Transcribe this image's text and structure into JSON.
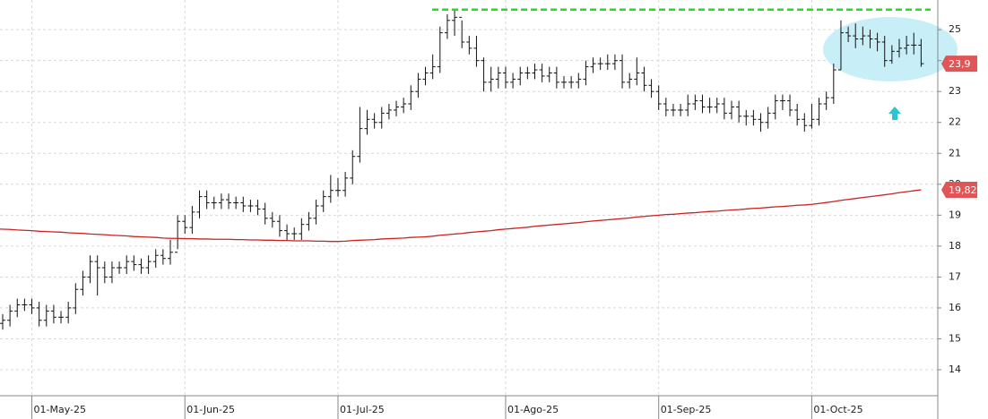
{
  "chart_data": {
    "type": "ohlc",
    "categories": [
      null,
      null,
      null,
      null,
      "01-May-25",
      null,
      null,
      null,
      null,
      null,
      null,
      null,
      null,
      null,
      null,
      null,
      null,
      null,
      null,
      null,
      null,
      null,
      null,
      null,
      null,
      "01-Jun-25",
      null,
      null,
      null,
      null,
      null,
      null,
      null,
      null,
      null,
      null,
      null,
      null,
      null,
      null,
      null,
      null,
      null,
      null,
      null,
      null,
      "01-Jul-25",
      null,
      null,
      null,
      null,
      null,
      null,
      null,
      null,
      null,
      null,
      null,
      null,
      null,
      null,
      null,
      null,
      null,
      null,
      null,
      null,
      null,
      null,
      "01-Ago-25",
      null,
      null,
      null,
      null,
      null,
      null,
      null,
      null,
      null,
      null,
      null,
      null,
      null,
      null,
      null,
      null,
      null,
      null,
      null,
      null,
      "01-Sep-25",
      null,
      null,
      null,
      null,
      null,
      null,
      null,
      null,
      null,
      null,
      null,
      null,
      null,
      null,
      null,
      null,
      null,
      null,
      null,
      null,
      "01-Oct-25",
      null,
      null,
      null,
      null,
      null,
      null,
      null,
      null,
      null,
      null,
      null,
      null,
      null,
      null,
      null
    ],
    "open": [
      15.5,
      15.6,
      15.9,
      16.1,
      16.1,
      16.0,
      15.6,
      15.9,
      15.7,
      15.7,
      16.0,
      16.6,
      17.0,
      17.5,
      17.3,
      17.0,
      17.3,
      17.3,
      17.5,
      17.4,
      17.3,
      17.5,
      17.7,
      17.6,
      17.8,
      18.8,
      18.6,
      19.1,
      19.6,
      19.4,
      19.4,
      19.5,
      19.4,
      19.4,
      19.3,
      19.3,
      19.2,
      18.9,
      18.8,
      18.5,
      18.4,
      18.4,
      18.7,
      18.9,
      19.3,
      19.6,
      19.8,
      19.8,
      20.2,
      20.9,
      21.8,
      22.1,
      22.0,
      22.3,
      22.4,
      22.5,
      22.6,
      23.0,
      23.4,
      23.6,
      23.8,
      24.9,
      25.3,
      25.4,
      24.6,
      24.4,
      24.0,
      23.3,
      23.4,
      23.6,
      23.3,
      23.4,
      23.6,
      23.6,
      23.7,
      23.5,
      23.6,
      23.3,
      23.3,
      23.3,
      23.4,
      23.8,
      23.9,
      23.9,
      23.9,
      24.0,
      23.3,
      23.4,
      23.6,
      23.2,
      23.0,
      22.6,
      22.4,
      22.4,
      22.4,
      22.6,
      22.7,
      22.5,
      22.5,
      22.6,
      22.3,
      22.5,
      22.2,
      22.2,
      22.1,
      22.0,
      22.3,
      22.7,
      22.7,
      22.4,
      22.1,
      21.9,
      22.1,
      22.6,
      22.8,
      23.7,
      24.9,
      24.8,
      24.7,
      24.8,
      24.7,
      24.6,
      24.0,
      24.3,
      24.4,
      24.5,
      24.5
    ],
    "high": [
      15.8,
      16.1,
      16.3,
      16.3,
      16.3,
      16.2,
      16.1,
      16.1,
      15.9,
      16.2,
      16.8,
      17.2,
      17.7,
      17.7,
      17.5,
      17.5,
      17.5,
      17.7,
      17.7,
      17.6,
      17.7,
      17.9,
      17.9,
      18.2,
      19.0,
      19.0,
      19.3,
      19.8,
      19.8,
      19.6,
      19.7,
      19.7,
      19.6,
      19.6,
      19.5,
      19.5,
      19.4,
      19.1,
      19.0,
      18.7,
      18.6,
      18.9,
      19.1,
      19.5,
      19.8,
      20.3,
      20.2,
      20.4,
      21.1,
      22.5,
      22.4,
      22.3,
      22.5,
      22.6,
      22.7,
      22.8,
      23.2,
      23.6,
      23.8,
      24.2,
      25.1,
      25.5,
      25.65,
      25.3,
      24.8,
      24.8,
      24.1,
      23.8,
      23.8,
      23.8,
      23.6,
      23.8,
      23.8,
      23.9,
      23.9,
      23.8,
      23.8,
      23.5,
      23.5,
      23.6,
      24.0,
      24.1,
      24.1,
      24.2,
      24.2,
      24.2,
      23.6,
      24.1,
      23.8,
      23.4,
      23.2,
      22.8,
      22.6,
      22.6,
      22.9,
      22.9,
      22.9,
      22.8,
      22.8,
      22.8,
      22.7,
      22.7,
      22.4,
      22.4,
      22.3,
      22.5,
      22.9,
      22.9,
      22.9,
      22.6,
      22.3,
      22.6,
      22.8,
      23.0,
      23.9,
      25.3,
      25.1,
      25.2,
      25.1,
      25.0,
      24.9,
      24.8,
      24.5,
      24.7,
      24.8,
      24.9,
      24.7
    ],
    "low": [
      15.3,
      15.4,
      15.7,
      15.9,
      15.8,
      15.4,
      15.4,
      15.5,
      15.5,
      15.5,
      15.8,
      16.4,
      16.8,
      16.4,
      16.8,
      16.8,
      17.1,
      17.1,
      17.2,
      17.1,
      17.1,
      17.3,
      17.4,
      17.4,
      17.9,
      18.4,
      18.4,
      18.9,
      19.2,
      19.2,
      19.2,
      19.2,
      19.2,
      19.1,
      19.1,
      19.0,
      18.7,
      18.6,
      18.3,
      18.2,
      18.2,
      18.2,
      18.5,
      18.7,
      19.1,
      19.4,
      19.6,
      19.6,
      20.0,
      20.7,
      21.6,
      21.8,
      21.8,
      22.1,
      22.2,
      22.3,
      22.4,
      22.8,
      23.2,
      23.4,
      23.6,
      24.7,
      24.8,
      24.4,
      24.2,
      23.8,
      23.0,
      23.0,
      23.1,
      23.1,
      23.1,
      23.2,
      23.4,
      23.4,
      23.3,
      23.3,
      23.1,
      23.1,
      23.1,
      23.1,
      23.2,
      23.6,
      23.7,
      23.7,
      23.7,
      23.1,
      23.1,
      23.2,
      23.0,
      22.8,
      22.4,
      22.2,
      22.2,
      22.2,
      22.2,
      22.4,
      22.3,
      22.3,
      22.3,
      22.1,
      22.1,
      22.0,
      21.9,
      21.9,
      21.7,
      21.8,
      22.1,
      22.4,
      22.2,
      21.9,
      21.7,
      21.8,
      21.9,
      22.4,
      22.6,
      23.7,
      24.6,
      24.4,
      24.5,
      24.4,
      24.3,
      23.8,
      23.9,
      24.1,
      24.2,
      24.2,
      23.8
    ],
    "close": [
      15.6,
      15.9,
      16.1,
      16.1,
      16.0,
      15.6,
      15.9,
      15.7,
      15.7,
      16.0,
      16.6,
      17.0,
      17.5,
      17.3,
      17.0,
      17.3,
      17.3,
      17.5,
      17.4,
      17.3,
      17.5,
      17.7,
      17.6,
      17.8,
      18.8,
      18.6,
      19.1,
      19.6,
      19.4,
      19.4,
      19.5,
      19.4,
      19.4,
      19.3,
      19.3,
      19.2,
      18.9,
      18.8,
      18.5,
      18.4,
      18.4,
      18.7,
      18.9,
      19.3,
      19.6,
      19.8,
      19.8,
      20.2,
      20.9,
      21.8,
      22.1,
      22.0,
      22.3,
      22.4,
      22.5,
      22.6,
      23.0,
      23.4,
      23.6,
      23.8,
      24.9,
      25.3,
      25.4,
      24.6,
      24.4,
      24.0,
      23.3,
      23.4,
      23.6,
      23.3,
      23.4,
      23.6,
      23.6,
      23.7,
      23.5,
      23.6,
      23.3,
      23.3,
      23.3,
      23.4,
      23.8,
      23.9,
      23.9,
      23.9,
      24.0,
      23.3,
      23.4,
      23.6,
      23.2,
      23.0,
      22.6,
      22.4,
      22.4,
      22.4,
      22.6,
      22.7,
      22.5,
      22.5,
      22.6,
      22.3,
      22.5,
      22.2,
      22.2,
      22.1,
      22.0,
      22.3,
      22.7,
      22.7,
      22.4,
      22.1,
      21.9,
      22.1,
      22.6,
      22.8,
      23.7,
      24.9,
      24.8,
      24.7,
      24.8,
      24.7,
      24.6,
      24.0,
      24.3,
      24.4,
      24.5,
      24.5,
      23.9
    ],
    "color": "#111111",
    "moving_average": {
      "color": "#cc2222",
      "values": [
        18.55,
        18.54,
        18.52,
        18.51,
        18.5,
        18.48,
        18.47,
        18.46,
        18.45,
        18.43,
        18.42,
        18.41,
        18.39,
        18.38,
        18.37,
        18.35,
        18.34,
        18.33,
        18.31,
        18.3,
        18.29,
        18.28,
        18.26,
        18.25,
        18.25,
        18.24,
        18.24,
        18.23,
        18.23,
        18.22,
        18.22,
        18.22,
        18.21,
        18.21,
        18.2,
        18.2,
        18.19,
        18.19,
        18.18,
        18.18,
        18.17,
        18.17,
        18.17,
        18.16,
        18.16,
        18.15,
        18.15,
        18.16,
        18.18,
        18.19,
        18.2,
        18.21,
        18.23,
        18.24,
        18.25,
        18.26,
        18.28,
        18.29,
        18.3,
        18.32,
        18.35,
        18.37,
        18.39,
        18.41,
        18.44,
        18.46,
        18.48,
        18.5,
        18.53,
        18.55,
        18.57,
        18.59,
        18.61,
        18.64,
        18.66,
        18.68,
        18.7,
        18.72,
        18.74,
        18.76,
        18.79,
        18.81,
        18.83,
        18.85,
        18.87,
        18.89,
        18.91,
        18.94,
        18.96,
        18.98,
        19.0,
        19.02,
        19.03,
        19.05,
        19.07,
        19.08,
        19.1,
        19.12,
        19.13,
        19.15,
        19.17,
        19.18,
        19.2,
        19.22,
        19.23,
        19.25,
        19.27,
        19.28,
        19.3,
        19.32,
        19.33,
        19.35,
        19.38,
        19.41,
        19.44,
        19.48,
        19.51,
        19.54,
        19.57,
        19.6,
        19.63,
        19.66,
        19.69,
        19.73,
        19.76,
        19.79,
        19.82
      ]
    },
    "resistance": {
      "value": 25.65,
      "color": "#22dd22"
    },
    "price_tags": [
      {
        "value": 23.9,
        "label": "23,9",
        "color": "#e05555"
      },
      {
        "value": 19.82,
        "label": "19,82",
        "color": "#e05555"
      }
    ],
    "ylim": [
      13.16,
      25.96
    ],
    "yticks": [
      14,
      15,
      16,
      17,
      18,
      19,
      20,
      21,
      22,
      23,
      24,
      25
    ],
    "grid": true
  }
}
